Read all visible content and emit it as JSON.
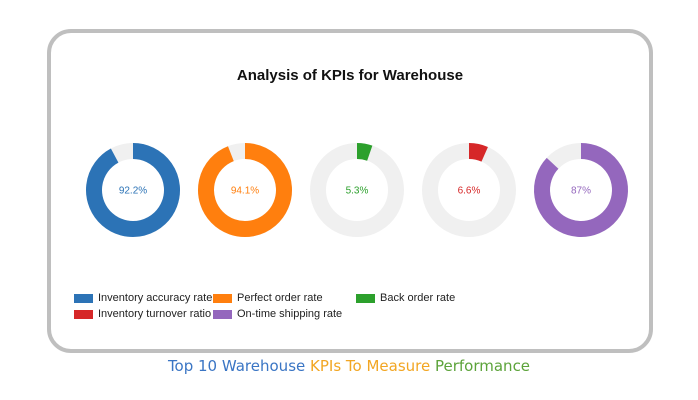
{
  "chart_data": {
    "type": "pie",
    "title": "Analysis of KPIs for Warehouse",
    "series": [
      {
        "name": "Inventory accuracy rate",
        "value": 92.2,
        "label": "92.2%",
        "color": "#2c73b6"
      },
      {
        "name": "Perfect order rate",
        "value": 94.1,
        "label": "94.1%",
        "color": "#ff7f0e"
      },
      {
        "name": "Back order rate",
        "value": 5.3,
        "label": "5.3%",
        "color": "#2ca02c"
      },
      {
        "name": "Inventory turnover ratio",
        "value": 6.6,
        "label": "6.6%",
        "color": "#d62728"
      },
      {
        "name": "On-time shipping rate",
        "value": 87,
        "label": "87%",
        "color": "#9467bd"
      }
    ],
    "remainder_color": "#f0f0f0",
    "legend_position": "bottom-left"
  },
  "caption": {
    "part1": "Top 10 Warehouse ",
    "part2": "KPIs To Measure ",
    "part3": "Performance",
    "color1": "#3a75c4",
    "color2": "#f2a623",
    "color3": "#5ca33a"
  }
}
